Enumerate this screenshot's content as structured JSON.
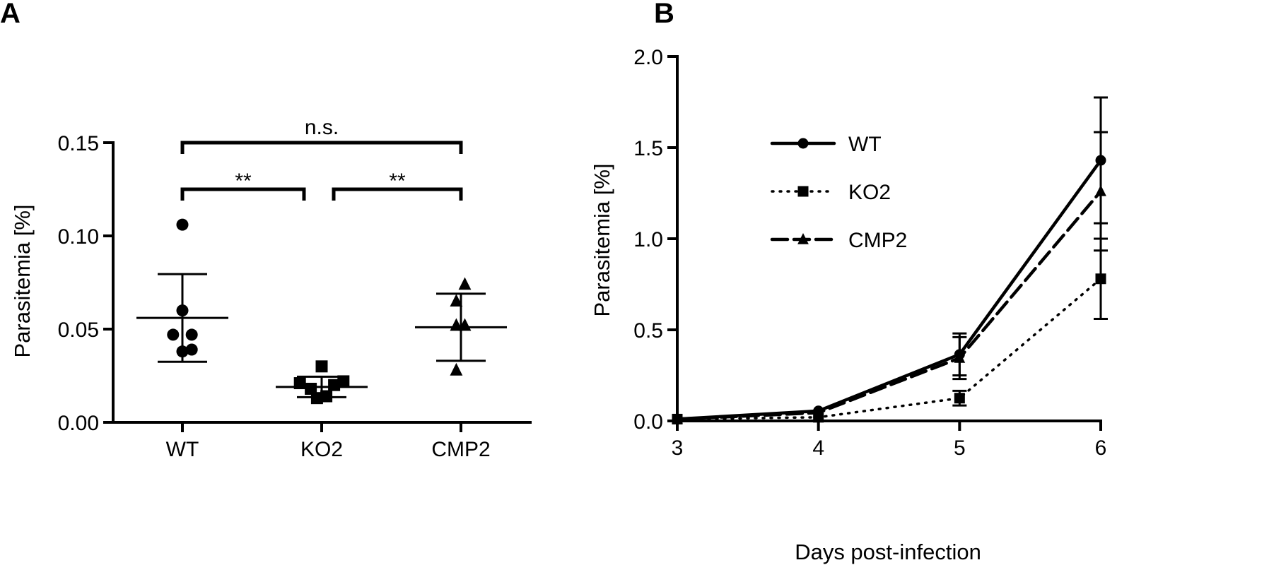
{
  "chart_data": [
    {
      "type": "scatter",
      "panel": "A",
      "ylabel": "Parasitemia [%]",
      "xlabel": "",
      "categories": [
        "WT",
        "KO2",
        "CMP2"
      ],
      "ylim": [
        0.0,
        0.15
      ],
      "yticks": [
        "0.00",
        "0.05",
        "0.10",
        "0.15"
      ],
      "ytick_values": [
        0.0,
        0.05,
        0.1,
        0.15
      ],
      "groups": [
        {
          "name": "WT",
          "marker": "circle",
          "points": [
            {
              "x": 0.0,
              "y": 0.106
            },
            {
              "x": 0.0,
              "y": 0.06
            },
            {
              "x": -0.12,
              "y": 0.047
            },
            {
              "x": 0.12,
              "y": 0.047
            },
            {
              "x": 0.0,
              "y": 0.038
            },
            {
              "x": 0.12,
              "y": 0.039
            }
          ],
          "mean": 0.056,
          "err_low": 0.0325,
          "err_high": 0.0795
        },
        {
          "name": "KO2",
          "marker": "square",
          "points": [
            {
              "x": -0.28,
              "y": 0.021
            },
            {
              "x": -0.14,
              "y": 0.018
            },
            {
              "x": 0.0,
              "y": 0.03
            },
            {
              "x": -0.06,
              "y": 0.013
            },
            {
              "x": 0.06,
              "y": 0.014
            },
            {
              "x": 0.16,
              "y": 0.02
            },
            {
              "x": 0.28,
              "y": 0.022
            }
          ],
          "mean": 0.019,
          "err_low": 0.0135,
          "err_high": 0.0245
        },
        {
          "name": "CMP2",
          "marker": "triangle",
          "points": [
            {
              "x": 0.05,
              "y": 0.074
            },
            {
              "x": -0.06,
              "y": 0.065
            },
            {
              "x": -0.06,
              "y": 0.052
            },
            {
              "x": 0.05,
              "y": 0.052
            },
            {
              "x": -0.06,
              "y": 0.028
            }
          ],
          "mean": 0.051,
          "err_low": 0.033,
          "err_high": 0.069
        }
      ],
      "significance": [
        {
          "from": "WT",
          "to": "KO2",
          "label": "**",
          "y": 0.125
        },
        {
          "from": "KO2",
          "to": "CMP2",
          "label": "**",
          "y": 0.125
        },
        {
          "from": "WT",
          "to": "CMP2",
          "label": "n.s.",
          "y": 0.15
        }
      ]
    },
    {
      "type": "line",
      "panel": "B",
      "xlabel": "Days post-infection",
      "ylabel": "Parasitemia [%]",
      "x": [
        3,
        4,
        5,
        6
      ],
      "xlim": [
        3,
        6
      ],
      "ylim": [
        0.0,
        2.0
      ],
      "xticks": [
        "3",
        "4",
        "5",
        "6"
      ],
      "yticks": [
        "0.0",
        "0.5",
        "1.0",
        "1.5",
        "2.0"
      ],
      "ytick_values": [
        0.0,
        0.5,
        1.0,
        1.5,
        2.0
      ],
      "legend_position": "upper-left",
      "series": [
        {
          "name": "WT",
          "marker": "circle",
          "line": "solid",
          "values": [
            0.01,
            0.055,
            0.365,
            1.43
          ],
          "err": [
            0,
            0,
            0.115,
            0.345
          ]
        },
        {
          "name": "KO2",
          "marker": "square",
          "line": "dotted",
          "values": [
            0.01,
            0.02,
            0.125,
            0.78
          ],
          "err": [
            0,
            0,
            0.04,
            0.22
          ]
        },
        {
          "name": "CMP2",
          "marker": "triangle",
          "line": "dashed",
          "values": [
            0.01,
            0.045,
            0.345,
            1.26
          ],
          "err": [
            0,
            0,
            0.115,
            0.325
          ]
        }
      ]
    }
  ],
  "panel_labels": [
    "A",
    "B"
  ]
}
